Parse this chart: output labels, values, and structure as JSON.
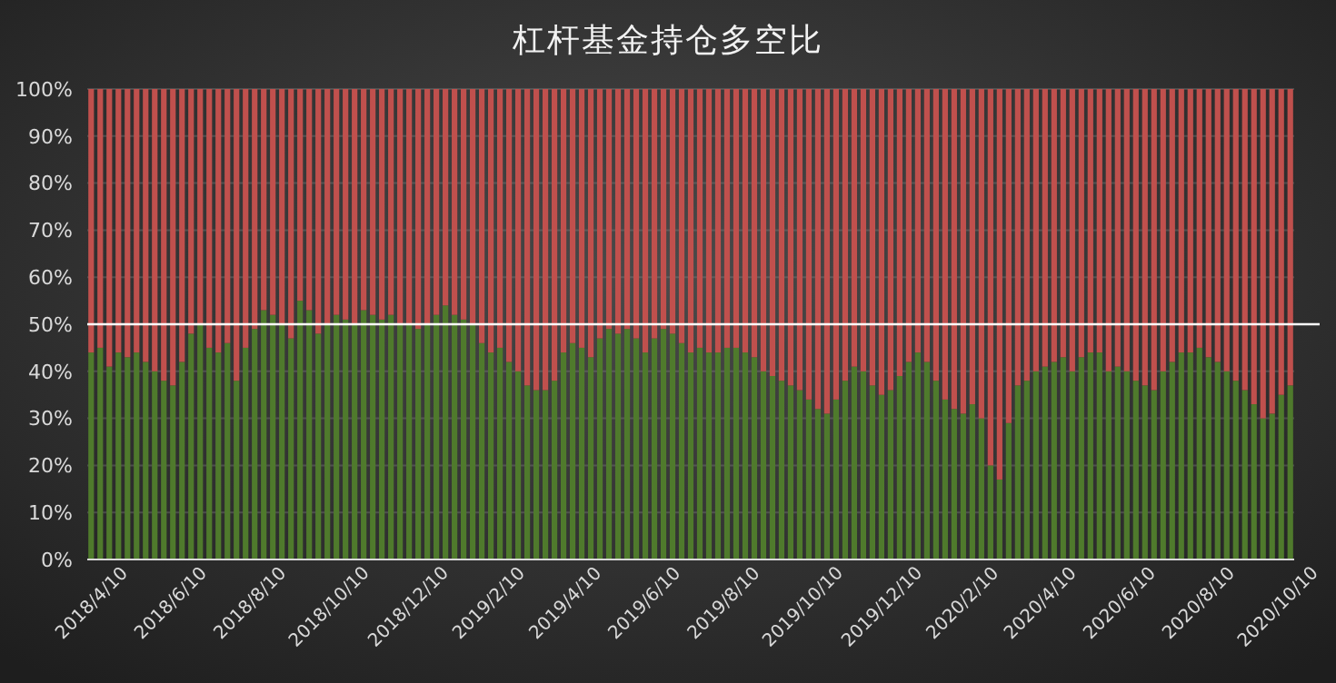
{
  "chart_data": {
    "type": "bar",
    "title": "杠杆基金持仓多空比",
    "stacked": true,
    "grid": "y",
    "x": [
      "2018-04-10",
      "2018-04-17",
      "2018-04-24",
      "2018-05-01",
      "2018-05-08",
      "2018-05-15",
      "2018-05-22",
      "2018-05-29",
      "2018-06-05",
      "2018-06-12",
      "2018-06-19",
      "2018-06-26",
      "2018-07-03",
      "2018-07-10",
      "2018-07-17",
      "2018-07-24",
      "2018-07-31",
      "2018-08-07",
      "2018-08-14",
      "2018-08-21",
      "2018-08-28",
      "2018-09-04",
      "2018-09-11",
      "2018-09-18",
      "2018-09-25",
      "2018-10-02",
      "2018-10-09",
      "2018-10-16",
      "2018-10-23",
      "2018-10-30",
      "2018-11-06",
      "2018-11-13",
      "2018-11-20",
      "2018-11-27",
      "2018-12-04",
      "2018-12-11",
      "2018-12-18",
      "2018-12-25",
      "2019-01-01",
      "2019-01-08",
      "2019-01-15",
      "2019-01-22",
      "2019-01-29",
      "2019-02-05",
      "2019-02-12",
      "2019-02-19",
      "2019-02-26",
      "2019-03-05",
      "2019-03-12",
      "2019-03-19",
      "2019-03-26",
      "2019-04-02",
      "2019-04-09",
      "2019-04-16",
      "2019-04-23",
      "2019-04-30",
      "2019-05-07",
      "2019-05-14",
      "2019-05-21",
      "2019-05-28",
      "2019-06-04",
      "2019-06-11",
      "2019-06-18",
      "2019-06-25",
      "2019-07-02",
      "2019-07-09",
      "2019-07-16",
      "2019-07-23",
      "2019-07-30",
      "2019-08-06",
      "2019-08-13",
      "2019-08-20",
      "2019-08-27",
      "2019-09-03",
      "2019-09-10",
      "2019-09-17",
      "2019-09-24",
      "2019-10-01",
      "2019-10-08",
      "2019-10-15",
      "2019-10-22",
      "2019-10-29",
      "2019-11-05",
      "2019-11-12",
      "2019-11-19",
      "2019-11-26",
      "2019-12-03",
      "2019-12-10",
      "2019-12-17",
      "2019-12-24",
      "2019-12-31",
      "2020-01-07",
      "2020-01-14",
      "2020-01-21",
      "2020-01-28",
      "2020-02-04",
      "2020-02-11",
      "2020-02-18",
      "2020-02-25",
      "2020-03-03",
      "2020-03-10",
      "2020-03-17",
      "2020-03-24",
      "2020-03-31",
      "2020-04-07",
      "2020-04-14",
      "2020-04-21",
      "2020-04-28",
      "2020-05-05",
      "2020-05-12",
      "2020-05-19",
      "2020-05-26",
      "2020-06-02",
      "2020-06-09",
      "2020-06-16",
      "2020-06-23",
      "2020-06-30",
      "2020-07-07",
      "2020-07-14",
      "2020-07-21",
      "2020-07-28",
      "2020-08-04",
      "2020-08-11",
      "2020-08-18",
      "2020-08-25",
      "2020-09-01",
      "2020-09-08",
      "2020-09-15",
      "2020-09-22",
      "2020-09-29",
      "2020-10-06",
      "2020-10-13",
      "2020-10-20"
    ],
    "series": [
      {
        "color": "#4f7a2c",
        "values": [
          44,
          45,
          41,
          44,
          43,
          44,
          42,
          40,
          38,
          37,
          42,
          48,
          50,
          45,
          44,
          46,
          38,
          45,
          49,
          53,
          52,
          50,
          47,
          55,
          53,
          48,
          50,
          52,
          51,
          50,
          53,
          52,
          51,
          52,
          50,
          50,
          49,
          50,
          52,
          54,
          52,
          51,
          50,
          46,
          44,
          45,
          42,
          40,
          37,
          36,
          36,
          38,
          44,
          46,
          45,
          43,
          47,
          49,
          48,
          49,
          47,
          44,
          47,
          49,
          48,
          46,
          44,
          45,
          44,
          44,
          45,
          45,
          44,
          43,
          40,
          39,
          38,
          37,
          36,
          34,
          32,
          31,
          34,
          38,
          41,
          40,
          37,
          35,
          36,
          39,
          42,
          44,
          42,
          38,
          34,
          32,
          31,
          33,
          30,
          20,
          17,
          29,
          37,
          38,
          40,
          41,
          42,
          43,
          40,
          43,
          44,
          44,
          40,
          41,
          40,
          38,
          37,
          36,
          40,
          42,
          44,
          44,
          45,
          43,
          42,
          40,
          38,
          36,
          33,
          30,
          31,
          35,
          37
        ]
      },
      {
        "color": "#c0504d",
        "values": [
          56,
          55,
          59,
          56,
          57,
          56,
          58,
          60,
          62,
          63,
          58,
          52,
          50,
          55,
          56,
          54,
          62,
          55,
          51,
          47,
          48,
          50,
          53,
          45,
          47,
          52,
          50,
          48,
          49,
          50,
          47,
          48,
          49,
          48,
          50,
          50,
          51,
          50,
          48,
          46,
          48,
          49,
          50,
          54,
          56,
          55,
          58,
          60,
          63,
          64,
          64,
          62,
          56,
          54,
          55,
          57,
          53,
          51,
          52,
          51,
          53,
          56,
          53,
          51,
          52,
          54,
          56,
          55,
          56,
          56,
          55,
          55,
          56,
          57,
          60,
          61,
          62,
          63,
          64,
          66,
          68,
          69,
          66,
          62,
          59,
          60,
          63,
          65,
          64,
          61,
          58,
          56,
          58,
          62,
          66,
          68,
          69,
          67,
          70,
          80,
          83,
          71,
          63,
          62,
          60,
          59,
          58,
          57,
          60,
          57,
          56,
          56,
          60,
          59,
          60,
          62,
          63,
          64,
          60,
          58,
          56,
          56,
          55,
          57,
          58,
          60,
          62,
          64,
          67,
          70,
          69,
          65,
          63
        ]
      }
    ],
    "xlim": [
      "2018-04-07",
      "2020-10-23"
    ],
    "xticks": [
      {
        "value": "2018-04-10",
        "label": "2018/4/10"
      },
      {
        "value": "2018-06-10",
        "label": "2018/6/10"
      },
      {
        "value": "2018-08-10",
        "label": "2018/8/10"
      },
      {
        "value": "2018-10-10",
        "label": "2018/10/10"
      },
      {
        "value": "2018-12-10",
        "label": "2018/12/10"
      },
      {
        "value": "2019-02-10",
        "label": "2019/2/10"
      },
      {
        "value": "2019-04-10",
        "label": "2019/4/10"
      },
      {
        "value": "2019-06-10",
        "label": "2019/6/10"
      },
      {
        "value": "2019-08-10",
        "label": "2019/8/10"
      },
      {
        "value": "2019-10-10",
        "label": "2019/10/10"
      },
      {
        "value": "2019-12-10",
        "label": "2019/12/10"
      },
      {
        "value": "2020-02-10",
        "label": "2020/2/10"
      },
      {
        "value": "2020-04-10",
        "label": "2020/4/10"
      },
      {
        "value": "2020-06-10",
        "label": "2020/6/10"
      },
      {
        "value": "2020-08-10",
        "label": "2020/8/10"
      },
      {
        "value": "2020-10-10",
        "label": "2020/10/10"
      }
    ],
    "ylim": [
      0,
      100
    ],
    "yticks": [
      {
        "value": 0,
        "label": "0%"
      },
      {
        "value": 10,
        "label": "10%"
      },
      {
        "value": 20,
        "label": "20%"
      },
      {
        "value": 30,
        "label": "30%"
      },
      {
        "value": 40,
        "label": "40%"
      },
      {
        "value": 50,
        "label": "50%"
      },
      {
        "value": 60,
        "label": "60%"
      },
      {
        "value": 70,
        "label": "70%"
      },
      {
        "value": 80,
        "label": "80%"
      },
      {
        "value": 90,
        "label": "90%"
      },
      {
        "value": 100,
        "label": "100%"
      }
    ],
    "ref_lines": [
      {
        "axis": "y",
        "value": 50,
        "color": "#ffffff"
      }
    ]
  }
}
